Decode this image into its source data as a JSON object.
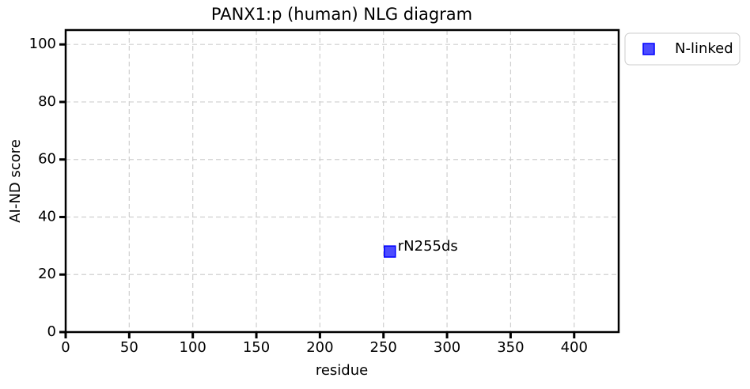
{
  "chart_data": {
    "type": "scatter",
    "title": "PANX1:p (human) NLG diagram",
    "x_label": "residue",
    "y_label": "AI-ND score",
    "series": [
      {
        "name": "N-linked",
        "color": "#0000ff",
        "x": [
          255
        ],
        "values": [
          28
        ],
        "point_labels": [
          "rN255ds"
        ]
      }
    ],
    "xlim": [
      0,
      435
    ],
    "xticks": [
      0,
      50,
      100,
      150,
      200,
      250,
      300,
      350,
      400
    ],
    "ylim": [
      0,
      105
    ],
    "yticks": [
      0,
      20,
      40,
      60,
      80,
      100
    ],
    "grid": true,
    "legend": "outside-upper-right"
  }
}
